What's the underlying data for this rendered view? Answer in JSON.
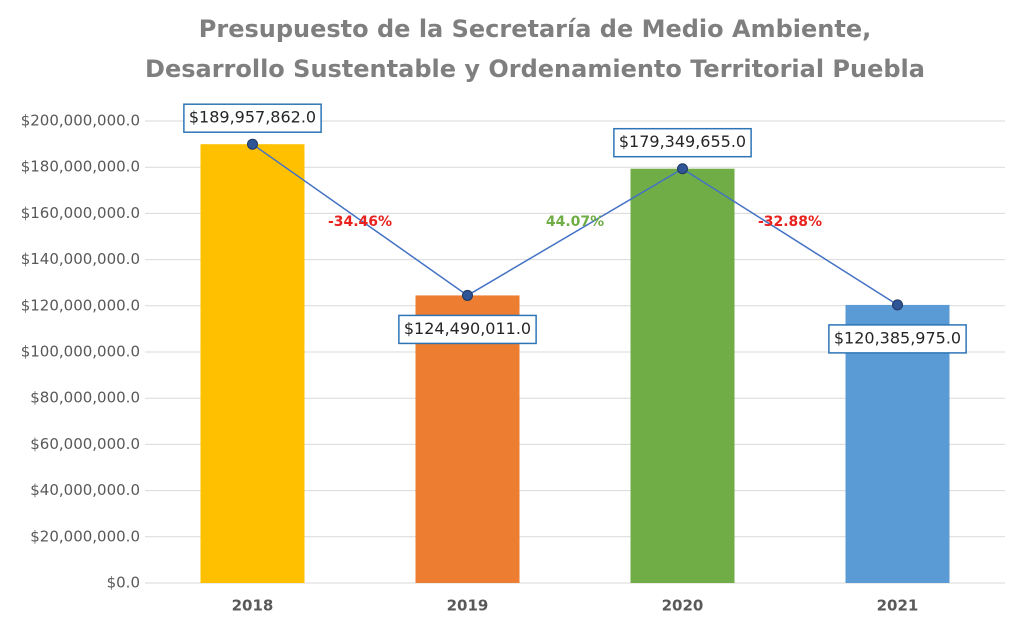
{
  "chart_data": {
    "type": "bar",
    "title": [
      "Presupuesto de la Secretaría de Medio Ambiente,",
      "Desarrollo Sustentable y Ordenamiento Territorial Puebla"
    ],
    "categories": [
      "2018",
      "2019",
      "2020",
      "2021"
    ],
    "values": [
      189957862,
      124490011,
      179349655,
      120385975
    ],
    "value_labels": [
      "$189,957,862.0",
      "$124,490,011.0",
      "$179,349,655.0",
      "$120,385,975.0"
    ],
    "colors": [
      "#ffc000",
      "#ed7d31",
      "#70ad47",
      "#5b9bd5"
    ],
    "line_color": "#4472c4",
    "annotations": [
      "-34.46%",
      "44.07%",
      "-32.88%"
    ],
    "annotation_colors": [
      "#e8221f",
      "#70ad47",
      "#e8221f"
    ],
    "ylim": [
      0,
      200000000
    ],
    "yticks": [
      {
        "value": 0,
        "label": "$0.0"
      },
      {
        "value": 20000000,
        "label": "$20,000,000.0"
      },
      {
        "value": 40000000,
        "label": "$40,000,000.0"
      },
      {
        "value": 60000000,
        "label": "$60,000,000.0"
      },
      {
        "value": 80000000,
        "label": "$80,000,000.0"
      },
      {
        "value": 100000000,
        "label": "$100,000,000.0"
      },
      {
        "value": 120000000,
        "label": "$120,000,000.0"
      },
      {
        "value": 140000000,
        "label": "$140,000,000.0"
      },
      {
        "value": 160000000,
        "label": "$160,000,000.0"
      },
      {
        "value": 180000000,
        "label": "$180,000,000.0"
      },
      {
        "value": 200000000,
        "label": "$200,000,000.0"
      }
    ],
    "grid": true
  }
}
